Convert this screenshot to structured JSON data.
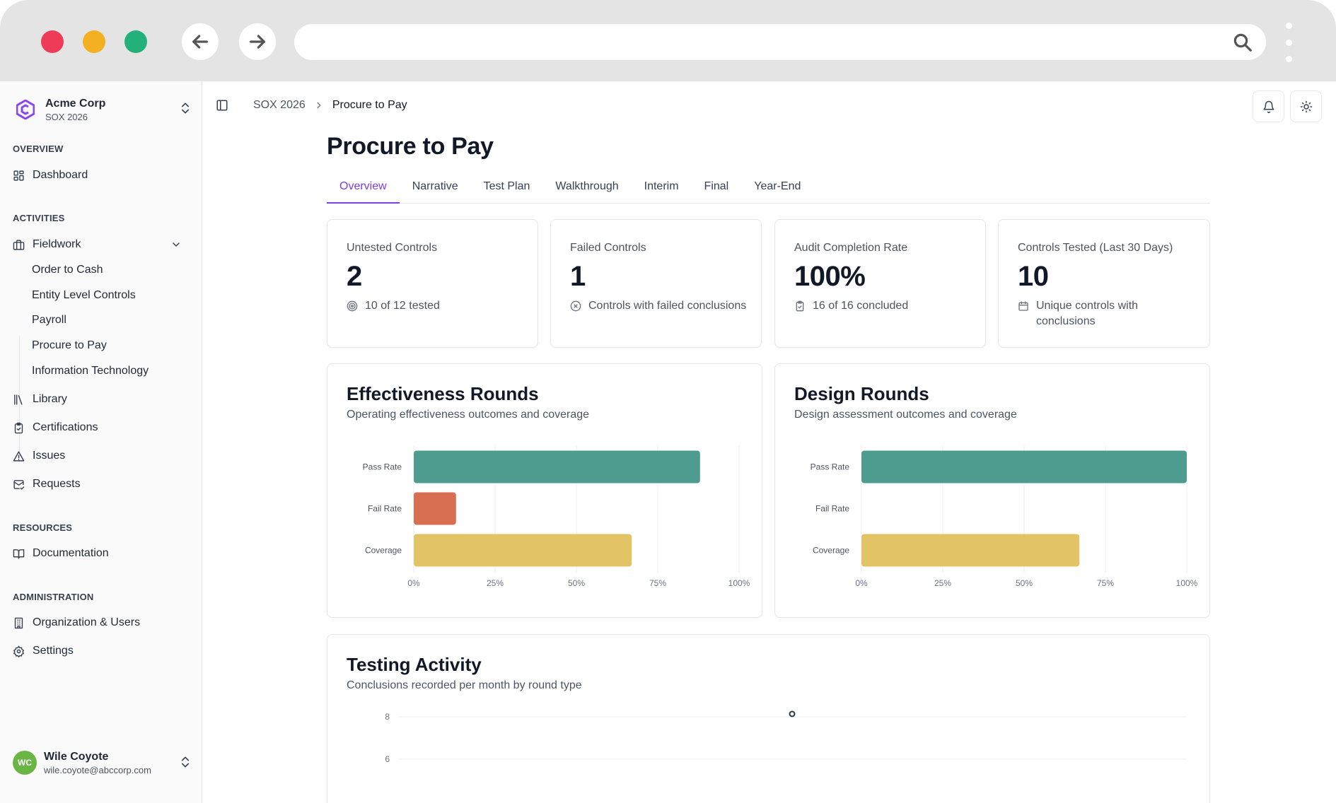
{
  "sidebar": {
    "org_name": "Acme Corp",
    "org_sub": "SOX 2026",
    "sections": {
      "overview": "OVERVIEW",
      "activities": "ACTIVITIES",
      "resources": "RESOURCES",
      "administration": "ADMINISTRATION"
    },
    "dashboard": "Dashboard",
    "fieldwork": "Fieldwork",
    "fieldwork_items": [
      "Order to Cash",
      "Entity Level Controls",
      "Payroll",
      "Procure to Pay",
      "Information Technology"
    ],
    "library": "Library",
    "certifications": "Certifications",
    "issues": "Issues",
    "requests": "Requests",
    "documentation": "Documentation",
    "org_users": "Organization & Users",
    "settings": "Settings",
    "user": {
      "initials": "WC",
      "name": "Wile Coyote",
      "email": "wile.coyote@abccorp.com"
    }
  },
  "breadcrumb": {
    "parent": "SOX 2026",
    "current": "Procure to Pay"
  },
  "page_title": "Procure to Pay",
  "tabs": [
    "Overview",
    "Narrative",
    "Test Plan",
    "Walkthrough",
    "Interim",
    "Final",
    "Year-End"
  ],
  "active_tab": "Overview",
  "stats": [
    {
      "label": "Untested Controls",
      "value": "2",
      "sub": "10 of 12 tested",
      "icon": "target-icon"
    },
    {
      "label": "Failed Controls",
      "value": "1",
      "sub": "Controls with failed conclusions",
      "icon": "x-circle-icon"
    },
    {
      "label": "Audit Completion Rate",
      "value": "100%",
      "sub": "16 of 16 concluded",
      "icon": "clipboard-check-icon"
    },
    {
      "label": "Controls Tested (Last 30 Days)",
      "value": "10",
      "sub": "Unique controls with conclusions",
      "icon": "calendar-icon"
    }
  ],
  "colors": {
    "accent": "#7b3fe4",
    "pass": "#4d9c8f",
    "fail": "#d86e52",
    "coverage": "#e2c467"
  },
  "chart_data": [
    {
      "type": "bar",
      "orientation": "horizontal",
      "title": "Effectiveness Rounds",
      "subtitle": "Operating effectiveness outcomes and coverage",
      "categories": [
        "Pass Rate",
        "Fail Rate",
        "Coverage"
      ],
      "values": [
        88,
        13,
        67
      ],
      "xlim": [
        0,
        100
      ],
      "xticks": [
        "0%",
        "25%",
        "50%",
        "75%",
        "100%"
      ],
      "grid": true
    },
    {
      "type": "bar",
      "orientation": "horizontal",
      "title": "Design Rounds",
      "subtitle": "Design assessment outcomes and coverage",
      "categories": [
        "Pass Rate",
        "Fail Rate",
        "Coverage"
      ],
      "values": [
        100,
        0,
        67
      ],
      "xlim": [
        0,
        100
      ],
      "xticks": [
        "0%",
        "25%",
        "50%",
        "75%",
        "100%"
      ],
      "grid": true
    },
    {
      "type": "line",
      "title": "Testing Activity",
      "subtitle": "Conclusions recorded per month by round type",
      "yticks": [
        "8",
        "6"
      ],
      "visible_point": {
        "y": 8
      },
      "grid": true
    }
  ]
}
